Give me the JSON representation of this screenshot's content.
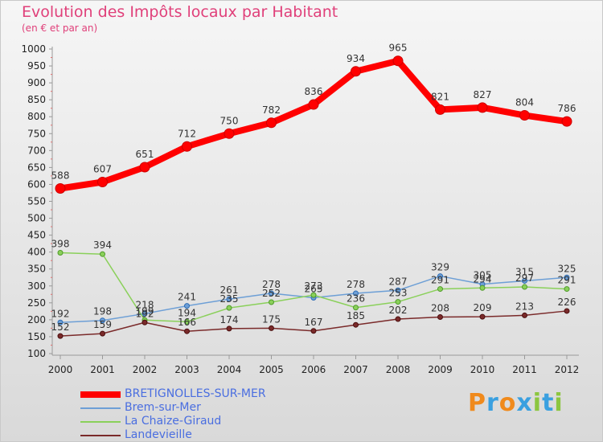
{
  "header": {
    "title": "Evolution des Impôts locaux par Habitant",
    "subtitle": "(en € et par an)"
  },
  "logo": {
    "text": "Proxiti",
    "colors": [
      "#f08a1c",
      "#3aa0e0",
      "#f08a1c",
      "#3aa0e0",
      "#8cc63f",
      "#3aa0e0",
      "#8cc63f"
    ]
  },
  "chart_data": {
    "type": "line",
    "x": [
      2000,
      2001,
      2002,
      2003,
      2004,
      2005,
      2006,
      2007,
      2008,
      2009,
      2010,
      2011,
      2012
    ],
    "ylim": [
      100,
      1000
    ],
    "yticks": [
      100,
      150,
      200,
      250,
      300,
      350,
      400,
      450,
      500,
      550,
      600,
      650,
      700,
      750,
      800,
      850,
      900,
      950,
      1000
    ],
    "grid": false,
    "legend_position": "bottom-left",
    "series": [
      {
        "name": "BRETIGNOLLES-SUR-MER",
        "color": "#ff0000",
        "values": [
          588,
          607,
          651,
          712,
          750,
          782,
          836,
          934,
          965,
          821,
          827,
          804,
          786
        ]
      },
      {
        "name": "Brem-sur-Mer",
        "color": "#6d9fd6",
        "values": [
          192,
          198,
          218,
          241,
          261,
          278,
          265,
          278,
          287,
          329,
          305,
          315,
          325
        ]
      },
      {
        "name": "La Chaize-Giraud",
        "color": "#8ad05a",
        "values": [
          398,
          394,
          199,
          194,
          235,
          252,
          273,
          236,
          253,
          291,
          294,
          297,
          291
        ]
      },
      {
        "name": "Landevieille",
        "color": "#7a2a2a",
        "values": [
          152,
          159,
          192,
          166,
          174,
          175,
          167,
          185,
          202,
          208,
          209,
          213,
          226
        ]
      }
    ]
  }
}
